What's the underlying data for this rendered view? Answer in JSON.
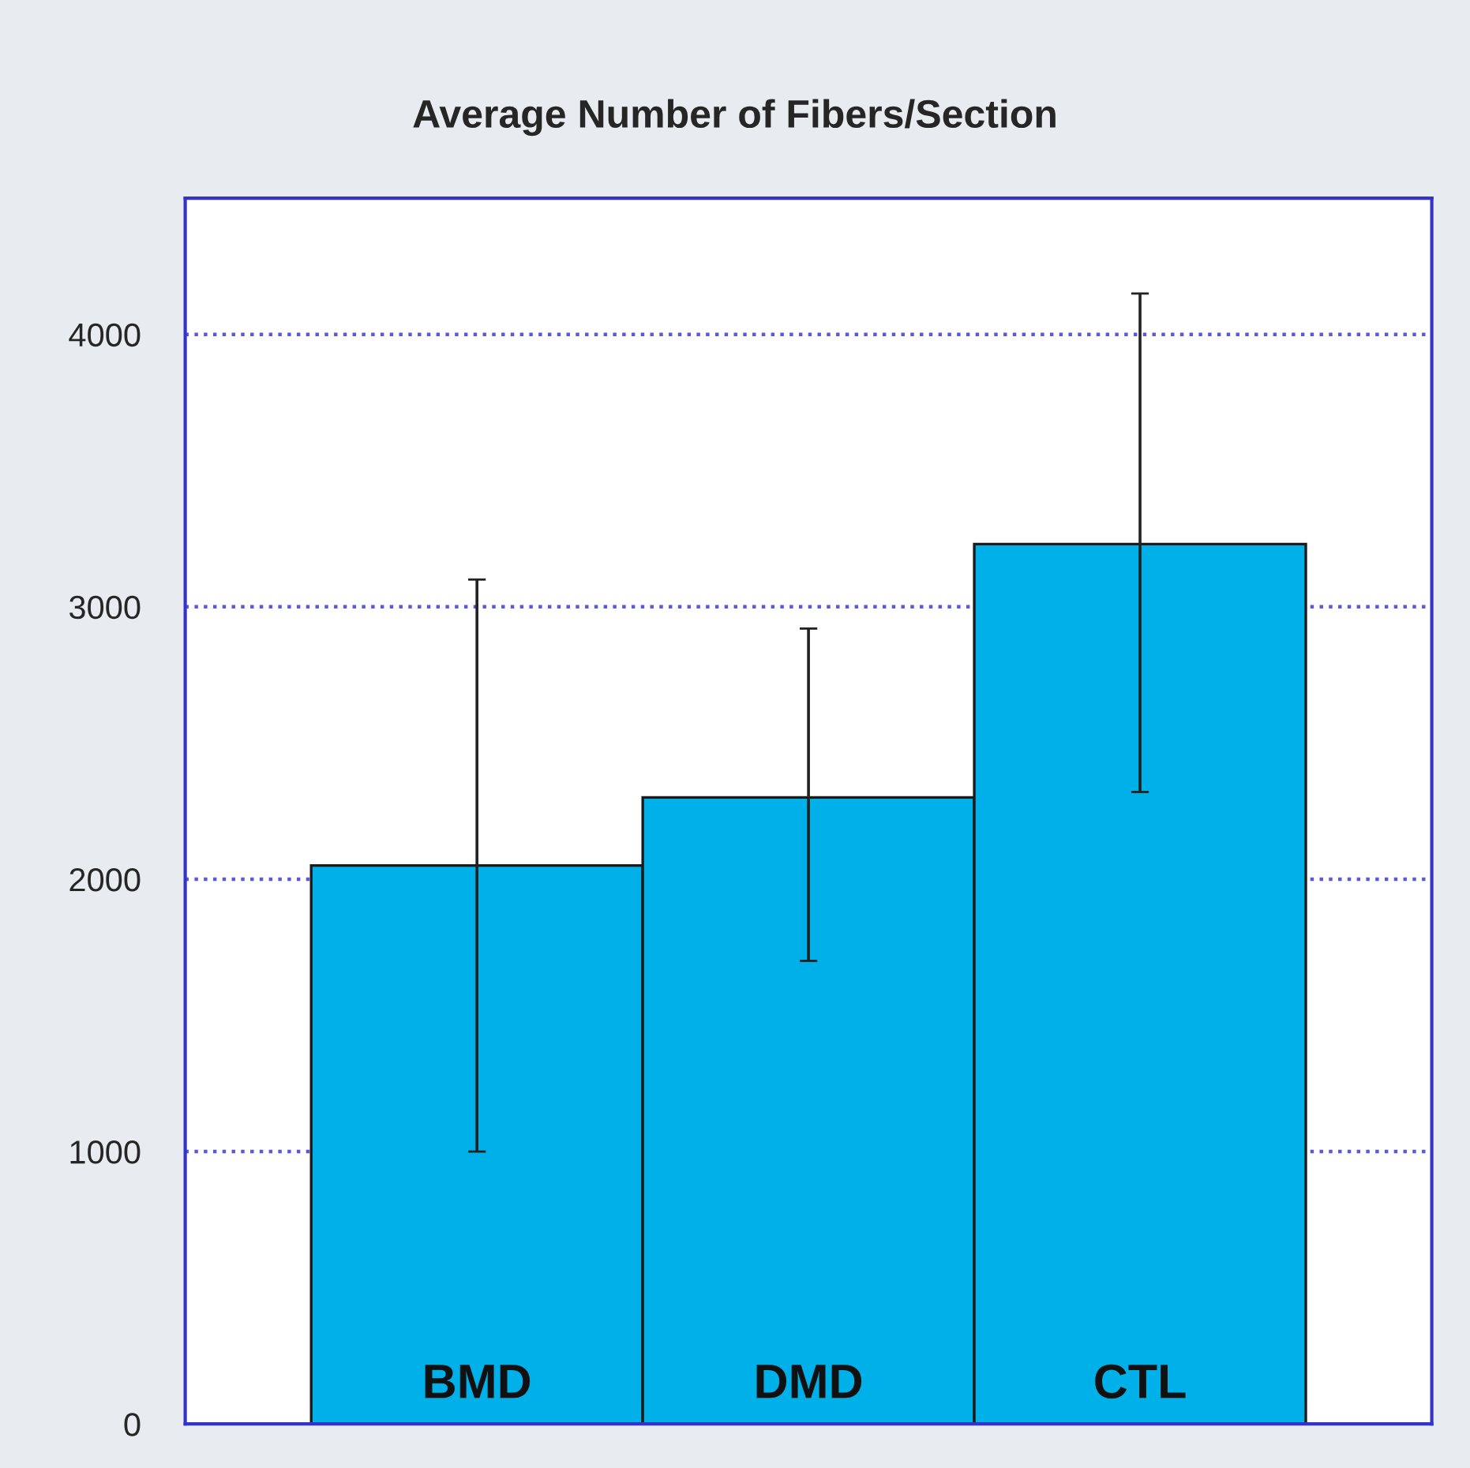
{
  "chart_data": {
    "type": "bar",
    "title": "Average Number of Fibers/Section",
    "categories": [
      "BMD",
      "DMD",
      "CTL"
    ],
    "values": [
      2050,
      2300,
      3230
    ],
    "errors": [
      [
        1000,
        3100
      ],
      [
        1700,
        2920
      ],
      [
        2320,
        4150
      ]
    ],
    "color": "#00b0e8",
    "ylim": [
      0,
      4500
    ],
    "yticks": [
      0,
      1000,
      2000,
      3000,
      4000
    ],
    "grid": "y"
  }
}
